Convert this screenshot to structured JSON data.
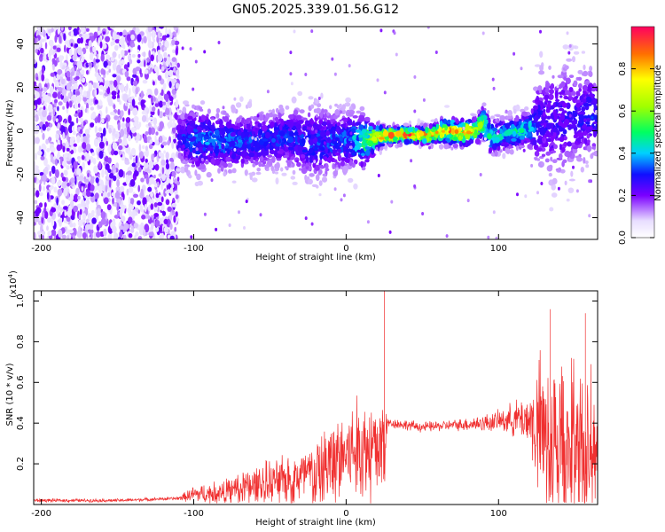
{
  "chart_data": [
    {
      "type": "heatmap",
      "title": "GN05.2025.339.01.56.G12",
      "xlabel": "Height of straight line (km)",
      "ylabel": "Frequency (Hz)",
      "xlim": [
        -205,
        165
      ],
      "ylim": [
        -50,
        48
      ],
      "xticks": [
        -200,
        -100,
        0,
        100
      ],
      "xtick_labels": [
        "-200",
        "-100",
        "0",
        "100"
      ],
      "yticks": [
        -40,
        -20,
        0,
        20,
        40
      ],
      "ytick_labels": [
        "-40",
        "-20",
        "0",
        "20",
        "40"
      ],
      "colorbar": {
        "label": "Normalized spectral amplitude",
        "range": [
          0.0,
          1.0
        ],
        "ticks": [
          0.0,
          0.2,
          0.4,
          0.6,
          0.8
        ],
        "tick_labels": [
          "0.0",
          "0.2",
          "0.4",
          "0.6",
          "0.8"
        ]
      },
      "noise_region_x": [
        -205,
        -110
      ],
      "ridge": {
        "x": [
          -110,
          -100,
          -80,
          -60,
          -40,
          -20,
          0,
          10,
          17,
          25,
          40,
          55,
          65,
          75,
          85,
          90,
          95,
          100,
          110,
          120,
          127,
          140,
          150,
          165
        ],
        "freq": [
          -3,
          -4,
          -5,
          -5,
          -3,
          -6,
          -4,
          -5,
          -4,
          -2,
          -2,
          -2,
          0,
          -1,
          0,
          4,
          -3,
          -2,
          -1,
          1,
          4,
          5,
          6,
          8
        ],
        "spread": [
          6,
          8,
          7,
          7,
          7,
          9,
          7,
          7,
          4,
          2,
          2,
          2,
          3,
          3,
          3,
          4,
          4,
          4,
          4,
          4,
          12,
          14,
          12,
          10
        ],
        "amplitude": [
          0.3,
          0.4,
          0.4,
          0.35,
          0.35,
          0.35,
          0.4,
          0.5,
          0.8,
          0.95,
          1.0,
          0.95,
          0.9,
          0.95,
          0.85,
          0.65,
          0.55,
          0.5,
          0.5,
          0.5,
          0.3,
          0.3,
          0.3,
          0.35
        ]
      }
    },
    {
      "type": "line",
      "xlabel": "Height of straight line (km)",
      "ylabel": "SNR (10 * v/v)",
      "multiplier_label": "(x10",
      "multiplier_exp": "4",
      "xlim": [
        -205,
        165
      ],
      "ylim": [
        0.0,
        1.05
      ],
      "xticks": [
        -200,
        -100,
        0,
        100
      ],
      "xtick_labels": [
        "-200",
        "-100",
        "0",
        "100"
      ],
      "yticks": [
        0.2,
        0.4,
        0.6,
        0.8,
        1.0
      ],
      "ytick_labels": [
        "0.2",
        "0.4",
        "0.6",
        "0.8",
        "1.0"
      ],
      "color": "#f03030",
      "series": [
        {
          "name": "SNR",
          "x": [
            -205,
            -150,
            -110,
            -100,
            -80,
            -60,
            -40,
            -20,
            -10,
            0,
            10,
            20,
            25,
            27,
            30,
            50,
            70,
            90,
            100,
            110,
            120,
            127,
            140,
            150,
            160,
            165
          ],
          "base": [
            0.02,
            0.02,
            0.03,
            0.05,
            0.06,
            0.09,
            0.12,
            0.15,
            0.2,
            0.25,
            0.27,
            0.27,
            0.3,
            0.4,
            0.4,
            0.38,
            0.39,
            0.4,
            0.41,
            0.42,
            0.42,
            0.35,
            0.3,
            0.28,
            0.3,
            0.35
          ],
          "amp": [
            0.01,
            0.01,
            0.01,
            0.05,
            0.07,
            0.12,
            0.14,
            0.2,
            0.25,
            0.28,
            0.32,
            0.32,
            0.35,
            0.03,
            0.03,
            0.03,
            0.03,
            0.05,
            0.06,
            0.1,
            0.15,
            0.45,
            0.55,
            0.55,
            0.45,
            0.35
          ],
          "peaks": [
            {
              "x": 25,
              "y": 1.05
            },
            {
              "x": 134,
              "y": 0.96
            },
            {
              "x": 157,
              "y": 0.94
            }
          ]
        }
      ]
    }
  ]
}
